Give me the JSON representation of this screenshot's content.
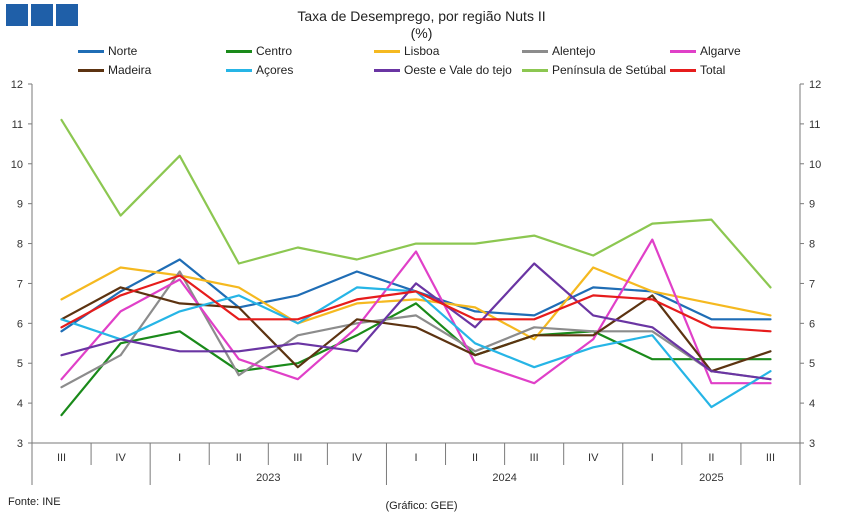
{
  "chart_data": {
    "type": "line",
    "title": "Taxa de Desemprego, por região Nuts II",
    "subtitle": "(%)",
    "ylim": [
      3,
      12
    ],
    "yticks": [
      3,
      4,
      5,
      6,
      7,
      8,
      9,
      10,
      11,
      12
    ],
    "categories": [
      "III",
      "IV",
      "I",
      "II",
      "III",
      "IV",
      "I",
      "II",
      "III",
      "IV",
      "I",
      "II",
      "III"
    ],
    "years": [
      {
        "label": "2023",
        "start": 2,
        "end": 5
      },
      {
        "label": "2024",
        "start": 6,
        "end": 9
      },
      {
        "label": "2025",
        "start": 10,
        "end": 12
      }
    ],
    "series": [
      {
        "name": "Norte",
        "color": "#1f6db5",
        "values": [
          5.8,
          6.8,
          7.6,
          6.4,
          6.7,
          7.3,
          6.8,
          6.3,
          6.2,
          6.9,
          6.8,
          6.1,
          6.1
        ]
      },
      {
        "name": "Centro",
        "color": "#1a8a1a",
        "values": [
          3.7,
          5.5,
          5.8,
          4.8,
          5.0,
          5.7,
          6.5,
          5.2,
          5.7,
          5.8,
          5.1,
          5.1,
          5.1
        ]
      },
      {
        "name": "Lisboa",
        "color": "#f5b920",
        "values": [
          6.6,
          7.4,
          7.2,
          6.9,
          6.0,
          6.5,
          6.6,
          6.4,
          5.6,
          7.4,
          6.8,
          6.5,
          6.2
        ]
      },
      {
        "name": "Alentejo",
        "color": "#8c8c8c",
        "values": [
          4.4,
          5.2,
          7.3,
          4.7,
          5.7,
          6.0,
          6.2,
          5.3,
          5.9,
          5.8,
          5.8,
          4.8,
          4.6
        ]
      },
      {
        "name": "Algarve",
        "color": "#e040c8",
        "values": [
          4.6,
          6.3,
          7.1,
          5.1,
          4.6,
          5.9,
          7.8,
          5.0,
          4.5,
          5.6,
          8.1,
          4.5,
          4.5
        ]
      },
      {
        "name": "Madeira",
        "color": "#5c3311",
        "values": [
          6.1,
          6.9,
          6.5,
          6.4,
          4.9,
          6.1,
          5.9,
          5.2,
          5.7,
          5.7,
          6.7,
          4.8,
          5.3
        ]
      },
      {
        "name": "Açores",
        "color": "#26b5e6",
        "values": [
          6.1,
          5.6,
          6.3,
          6.7,
          6.0,
          6.9,
          6.8,
          5.5,
          4.9,
          5.4,
          5.7,
          3.9,
          4.8
        ]
      },
      {
        "name": "Oeste e Vale do tejo",
        "color": "#6a35a3",
        "values": [
          5.2,
          5.6,
          5.3,
          5.3,
          5.5,
          5.3,
          7.0,
          5.9,
          7.5,
          6.2,
          5.9,
          4.8,
          4.6
        ]
      },
      {
        "name": "Península de Setúbal",
        "color": "#8cc751",
        "values": [
          11.1,
          8.7,
          10.2,
          7.5,
          7.9,
          7.6,
          8.0,
          8.0,
          8.2,
          7.7,
          8.5,
          8.6,
          6.9
        ]
      },
      {
        "name": "Total",
        "color": "#e61c1c",
        "values": [
          5.9,
          6.7,
          7.2,
          6.1,
          6.1,
          6.6,
          6.8,
          6.1,
          6.1,
          6.7,
          6.6,
          5.9,
          5.8
        ]
      }
    ],
    "grid": false,
    "legend_position": "top"
  },
  "footer": {
    "source": "Fonte: INE",
    "credit": "(Gráfico: GEE)"
  },
  "logo": {
    "color": "#1f5fa8"
  }
}
